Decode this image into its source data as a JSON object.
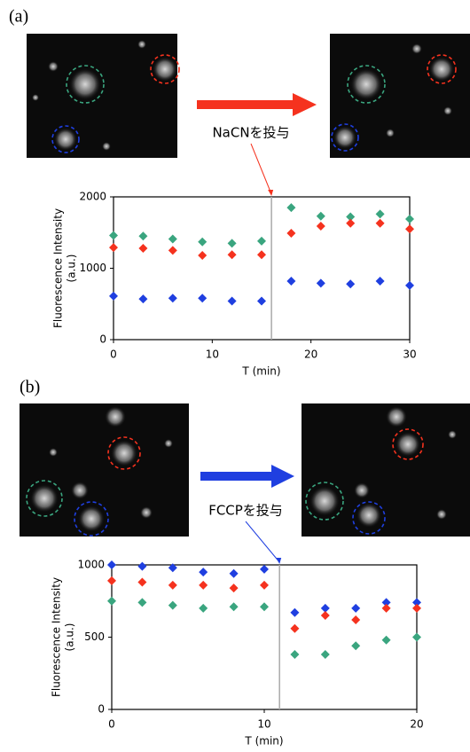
{
  "chart_data": [
    {
      "type": "scatter",
      "panel_label": "(a)",
      "annotation": "NaCNを投与",
      "xlabel": "T (min)",
      "ylabel": [
        "Fluorescence Intensity",
        "(a.u.)"
      ],
      "x": [
        0,
        3,
        6,
        9,
        12,
        15,
        18,
        21,
        24,
        27,
        30
      ],
      "xlim": [
        0,
        30
      ],
      "xticks": [
        0,
        10,
        20,
        30
      ],
      "ylim": [
        0,
        2000
      ],
      "yticks": [
        0,
        1000,
        2000
      ],
      "vline_x": 16,
      "vline_color": "#aaaaaa",
      "grid": false,
      "series": [
        {
          "color": "#3aa57f",
          "values": [
            1460,
            1450,
            1410,
            1370,
            1350,
            1380,
            1850,
            1730,
            1720,
            1760,
            1690
          ]
        },
        {
          "color": "#f5321e",
          "values": [
            1290,
            1280,
            1250,
            1180,
            1190,
            1190,
            1490,
            1590,
            1630,
            1630,
            1550
          ]
        },
        {
          "color": "#1f3fe0",
          "values": [
            610,
            570,
            580,
            580,
            540,
            540,
            820,
            790,
            780,
            820,
            760
          ]
        }
      ]
    },
    {
      "type": "scatter",
      "panel_label": "(b)",
      "annotation": "FCCPを投与",
      "xlabel": "T (min)",
      "ylabel": [
        "Fluorescence Intensity",
        "(a.u.)"
      ],
      "x": [
        0,
        2,
        4,
        6,
        8,
        10,
        12,
        14,
        16,
        18,
        20
      ],
      "xlim": [
        0,
        20
      ],
      "xticks": [
        0,
        10,
        20
      ],
      "ylim": [
        0,
        1000
      ],
      "yticks": [
        0,
        500,
        1000
      ],
      "vline_x": 11,
      "vline_color": "#aaaaaa",
      "grid": false,
      "series": [
        {
          "color": "#1f3fe0",
          "values": [
            1000,
            990,
            980,
            950,
            940,
            970,
            670,
            700,
            700,
            740,
            740
          ]
        },
        {
          "color": "#f5321e",
          "values": [
            890,
            880,
            860,
            860,
            840,
            860,
            560,
            650,
            620,
            700,
            700
          ]
        },
        {
          "color": "#3aa57f",
          "values": [
            750,
            740,
            720,
            700,
            710,
            710,
            380,
            380,
            440,
            480,
            500
          ]
        }
      ]
    }
  ]
}
